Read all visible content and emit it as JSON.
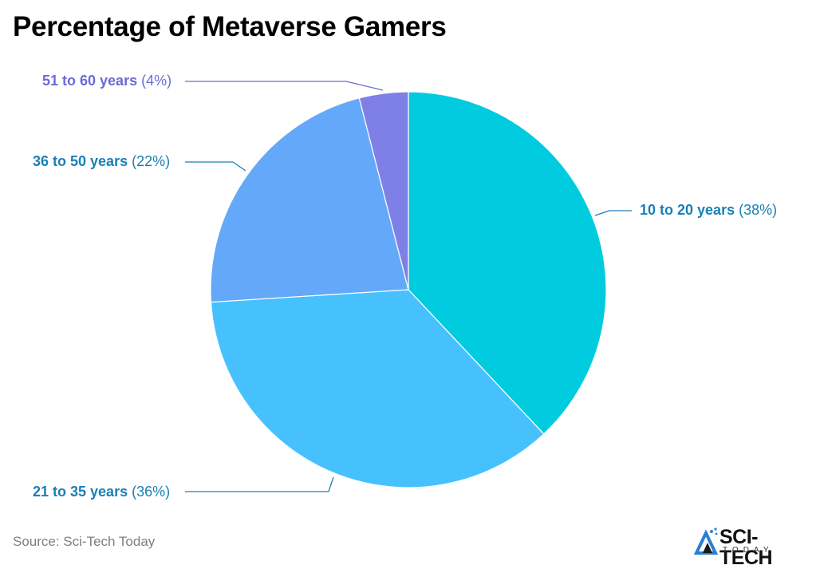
{
  "title": "Percentage of Metaverse Gamers",
  "source": "Source: Sci-Tech Today",
  "logo": {
    "name": "SCI-TECH",
    "sub": "TODAY"
  },
  "labels": [
    {
      "name": "10 to 20 years",
      "pct": "(38%)",
      "color": "#1a7fb5"
    },
    {
      "name": "21 to 35 years",
      "pct": "(36%)",
      "color": "#1a7fb5"
    },
    {
      "name": "36 to 50 years",
      "pct": "(22%)",
      "color": "#1a7fb5"
    },
    {
      "name": "51 to 60 years",
      "pct": "(4%)",
      "color": "#6b6bd6"
    }
  ],
  "chart_data": {
    "type": "pie",
    "title": "Percentage of Metaverse Gamers",
    "categories": [
      "10 to 20 years",
      "21 to 35 years",
      "36 to 50 years",
      "51 to 60 years"
    ],
    "values": [
      38,
      36,
      22,
      4
    ],
    "unit": "%",
    "colors": [
      "#00cbdf",
      "#47c1fd",
      "#64a8f9",
      "#7f80e7"
    ],
    "start_angle": "12 o'clock, clockwise",
    "legend": "none (direct labels with leader lines)",
    "source": "Sci-Tech Today"
  }
}
